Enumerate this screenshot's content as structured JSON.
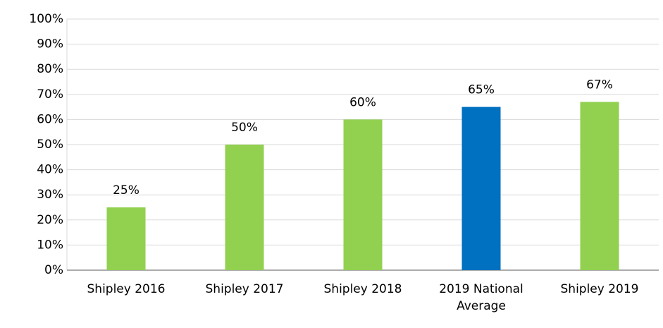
{
  "chart_data": {
    "type": "bar",
    "categories": [
      "Shipley 2016",
      "Shipley 2017",
      "Shipley 2018",
      "2019 National Average",
      "Shipley 2019"
    ],
    "values": [
      25,
      50,
      60,
      65,
      67
    ],
    "value_labels": [
      "25%",
      "50%",
      "60%",
      "65%",
      "67%"
    ],
    "colors": [
      "#92d050",
      "#92d050",
      "#92d050",
      "#0070c0",
      "#92d050"
    ],
    "ylim": [
      0,
      100
    ],
    "yticks": [
      {
        "value": 0,
        "label": "0%"
      },
      {
        "value": 10,
        "label": "10%"
      },
      {
        "value": 20,
        "label": "20%"
      },
      {
        "value": 30,
        "label": "30%"
      },
      {
        "value": 40,
        "label": "40%"
      },
      {
        "value": 50,
        "label": "50%"
      },
      {
        "value": 60,
        "label": "60%"
      },
      {
        "value": 70,
        "label": "70%"
      },
      {
        "value": 80,
        "label": "80%"
      },
      {
        "value": 90,
        "label": "90%"
      },
      {
        "value": 100,
        "label": "100%"
      }
    ],
    "grid": true
  }
}
